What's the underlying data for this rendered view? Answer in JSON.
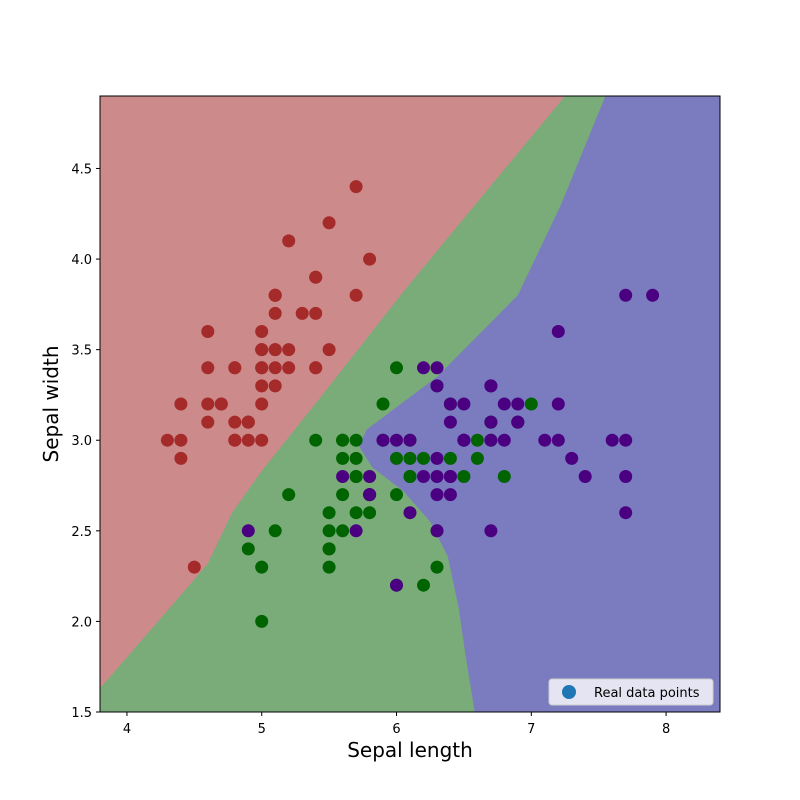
{
  "chart_data": {
    "type": "scatter",
    "title": "",
    "xlabel": "Sepal length",
    "ylabel": "Sepal width",
    "xlim": [
      3.8,
      8.4
    ],
    "ylim": [
      1.5,
      4.9
    ],
    "x_ticks": [
      "4",
      "5",
      "6",
      "7",
      "8"
    ],
    "y_ticks": [
      "1.5",
      "2.0",
      "2.5",
      "3.0",
      "3.5",
      "4.0",
      "4.5"
    ],
    "grid": false,
    "legend": {
      "label": "Real data points",
      "placement": "bottom-right",
      "marker_color": "#1f77b4"
    },
    "decision_regions": [
      {
        "color": "#cc8a8a"
      },
      {
        "color": "#7aac7a"
      },
      {
        "color": "#7b7bbf"
      }
    ],
    "series": [
      {
        "color": "#a52a2a",
        "points": [
          [
            5.1,
            3.5
          ],
          [
            4.9,
            3.0
          ],
          [
            4.7,
            3.2
          ],
          [
            4.6,
            3.1
          ],
          [
            5.0,
            3.6
          ],
          [
            5.4,
            3.9
          ],
          [
            4.6,
            3.4
          ],
          [
            5.0,
            3.4
          ],
          [
            4.4,
            2.9
          ],
          [
            4.9,
            3.1
          ],
          [
            5.4,
            3.7
          ],
          [
            4.8,
            3.4
          ],
          [
            4.8,
            3.0
          ],
          [
            4.3,
            3.0
          ],
          [
            5.8,
            4.0
          ],
          [
            5.7,
            4.4
          ],
          [
            5.4,
            3.9
          ],
          [
            5.1,
            3.5
          ],
          [
            5.7,
            3.8
          ],
          [
            5.1,
            3.8
          ],
          [
            5.4,
            3.4
          ],
          [
            5.1,
            3.7
          ],
          [
            4.6,
            3.6
          ],
          [
            5.1,
            3.3
          ],
          [
            4.8,
            3.4
          ],
          [
            5.0,
            3.0
          ],
          [
            5.0,
            3.4
          ],
          [
            5.2,
            3.5
          ],
          [
            5.2,
            3.4
          ],
          [
            4.7,
            3.2
          ],
          [
            4.8,
            3.1
          ],
          [
            5.4,
            3.4
          ],
          [
            5.2,
            4.1
          ],
          [
            5.5,
            4.2
          ],
          [
            4.9,
            3.1
          ],
          [
            5.0,
            3.2
          ],
          [
            5.5,
            3.5
          ],
          [
            4.9,
            3.1
          ],
          [
            4.4,
            3.0
          ],
          [
            5.1,
            3.4
          ],
          [
            5.0,
            3.5
          ],
          [
            4.5,
            2.3
          ],
          [
            4.4,
            3.2
          ],
          [
            5.0,
            3.5
          ],
          [
            5.1,
            3.8
          ],
          [
            4.8,
            3.0
          ],
          [
            5.1,
            3.8
          ],
          [
            4.6,
            3.2
          ],
          [
            5.3,
            3.7
          ],
          [
            5.0,
            3.3
          ]
        ]
      },
      {
        "color": "#006400",
        "points": [
          [
            7.0,
            3.2
          ],
          [
            6.4,
            3.2
          ],
          [
            6.9,
            3.1
          ],
          [
            5.5,
            2.3
          ],
          [
            6.5,
            2.8
          ],
          [
            5.7,
            2.8
          ],
          [
            6.3,
            3.3
          ],
          [
            4.9,
            2.4
          ],
          [
            6.6,
            2.9
          ],
          [
            5.2,
            2.7
          ],
          [
            5.0,
            2.0
          ],
          [
            5.9,
            3.0
          ],
          [
            6.0,
            2.2
          ],
          [
            6.1,
            2.9
          ],
          [
            5.6,
            2.9
          ],
          [
            6.7,
            3.1
          ],
          [
            5.6,
            3.0
          ],
          [
            5.8,
            2.7
          ],
          [
            6.2,
            2.2
          ],
          [
            5.6,
            2.5
          ],
          [
            5.9,
            3.2
          ],
          [
            6.1,
            2.8
          ],
          [
            6.3,
            2.5
          ],
          [
            6.1,
            2.8
          ],
          [
            6.4,
            2.9
          ],
          [
            6.6,
            3.0
          ],
          [
            6.8,
            2.8
          ],
          [
            6.7,
            3.0
          ],
          [
            6.0,
            2.9
          ],
          [
            5.7,
            2.6
          ],
          [
            5.5,
            2.4
          ],
          [
            5.5,
            2.4
          ],
          [
            5.8,
            2.7
          ],
          [
            6.0,
            2.7
          ],
          [
            5.4,
            3.0
          ],
          [
            6.0,
            3.4
          ],
          [
            6.7,
            3.1
          ],
          [
            6.3,
            2.3
          ],
          [
            5.6,
            3.0
          ],
          [
            5.5,
            2.5
          ],
          [
            5.5,
            2.6
          ],
          [
            6.1,
            3.0
          ],
          [
            5.8,
            2.6
          ],
          [
            5.0,
            2.3
          ],
          [
            5.6,
            2.7
          ],
          [
            5.7,
            3.0
          ],
          [
            5.7,
            2.9
          ],
          [
            6.2,
            2.9
          ],
          [
            5.1,
            2.5
          ],
          [
            5.7,
            2.8
          ]
        ]
      },
      {
        "color": "#4b0082",
        "points": [
          [
            6.3,
            3.3
          ],
          [
            5.8,
            2.7
          ],
          [
            7.1,
            3.0
          ],
          [
            6.3,
            2.9
          ],
          [
            6.5,
            3.0
          ],
          [
            7.6,
            3.0
          ],
          [
            4.9,
            2.5
          ],
          [
            7.3,
            2.9
          ],
          [
            6.7,
            2.5
          ],
          [
            7.2,
            3.6
          ],
          [
            6.5,
            3.2
          ],
          [
            6.4,
            2.7
          ],
          [
            6.8,
            3.0
          ],
          [
            5.7,
            2.5
          ],
          [
            5.8,
            2.8
          ],
          [
            6.4,
            3.2
          ],
          [
            6.5,
            3.0
          ],
          [
            7.7,
            3.8
          ],
          [
            7.7,
            2.6
          ],
          [
            6.0,
            2.2
          ],
          [
            6.9,
            3.2
          ],
          [
            5.6,
            2.8
          ],
          [
            7.7,
            2.8
          ],
          [
            6.3,
            2.7
          ],
          [
            6.7,
            3.3
          ],
          [
            7.2,
            3.2
          ],
          [
            6.2,
            2.8
          ],
          [
            6.1,
            3.0
          ],
          [
            6.4,
            2.8
          ],
          [
            7.2,
            3.0
          ],
          [
            7.4,
            2.8
          ],
          [
            7.9,
            3.8
          ],
          [
            6.4,
            2.8
          ],
          [
            6.3,
            2.8
          ],
          [
            6.1,
            2.6
          ],
          [
            7.7,
            3.0
          ],
          [
            6.3,
            3.4
          ],
          [
            6.4,
            3.1
          ],
          [
            6.0,
            3.0
          ],
          [
            6.9,
            3.1
          ],
          [
            6.7,
            3.1
          ],
          [
            6.9,
            3.1
          ],
          [
            5.8,
            2.7
          ],
          [
            6.8,
            3.2
          ],
          [
            6.7,
            3.3
          ],
          [
            6.7,
            3.0
          ],
          [
            6.3,
            2.5
          ],
          [
            6.5,
            3.0
          ],
          [
            6.2,
            3.4
          ],
          [
            5.9,
            3.0
          ]
        ]
      }
    ]
  }
}
